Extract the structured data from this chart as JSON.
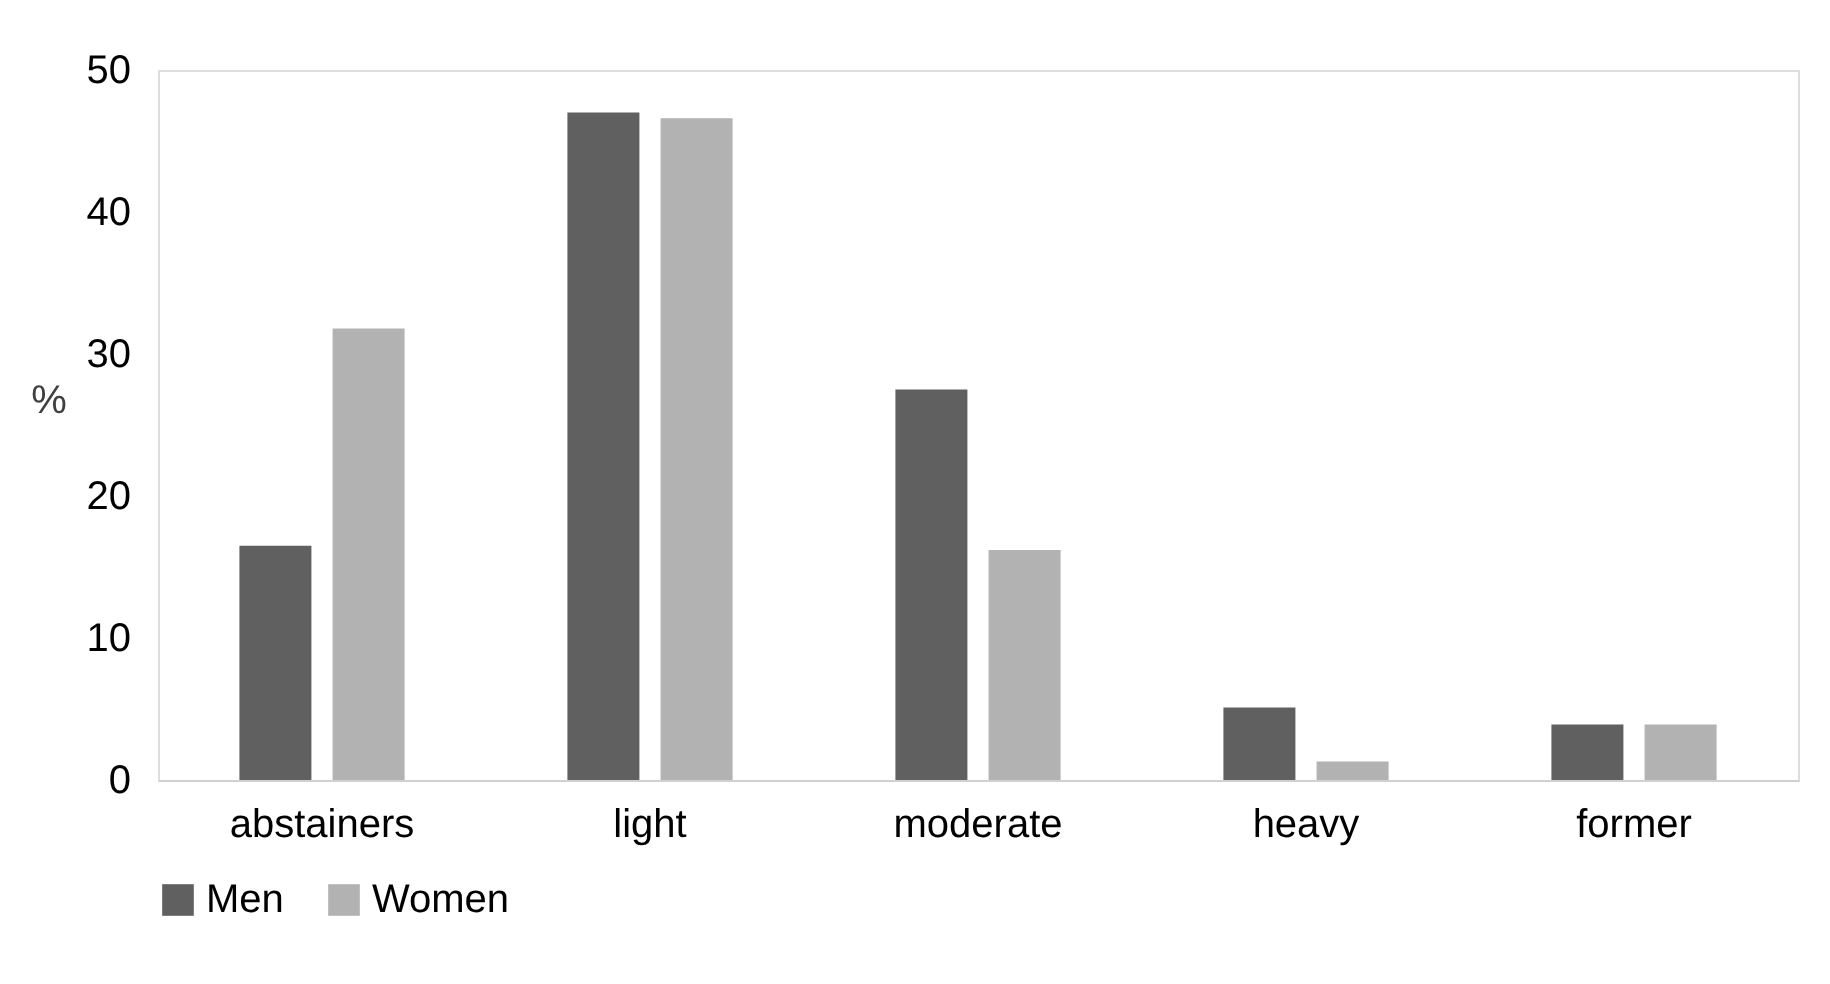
{
  "chart_data": {
    "type": "bar",
    "ylabel": "%",
    "categories": [
      "abstainers",
      "light",
      "moderate",
      "heavy",
      "former"
    ],
    "series": [
      {
        "name": "Men",
        "color": "#606060",
        "values": [
          16.5,
          47.0,
          27.5,
          5.1,
          3.9
        ]
      },
      {
        "name": "Women",
        "color": "#b2b2b2",
        "values": [
          31.8,
          46.6,
          16.2,
          1.3,
          3.9
        ]
      }
    ],
    "ylim": [
      0,
      50
    ],
    "yticks": [
      0,
      10,
      20,
      30,
      40,
      50
    ],
    "grid": false,
    "legend": "bottom"
  }
}
